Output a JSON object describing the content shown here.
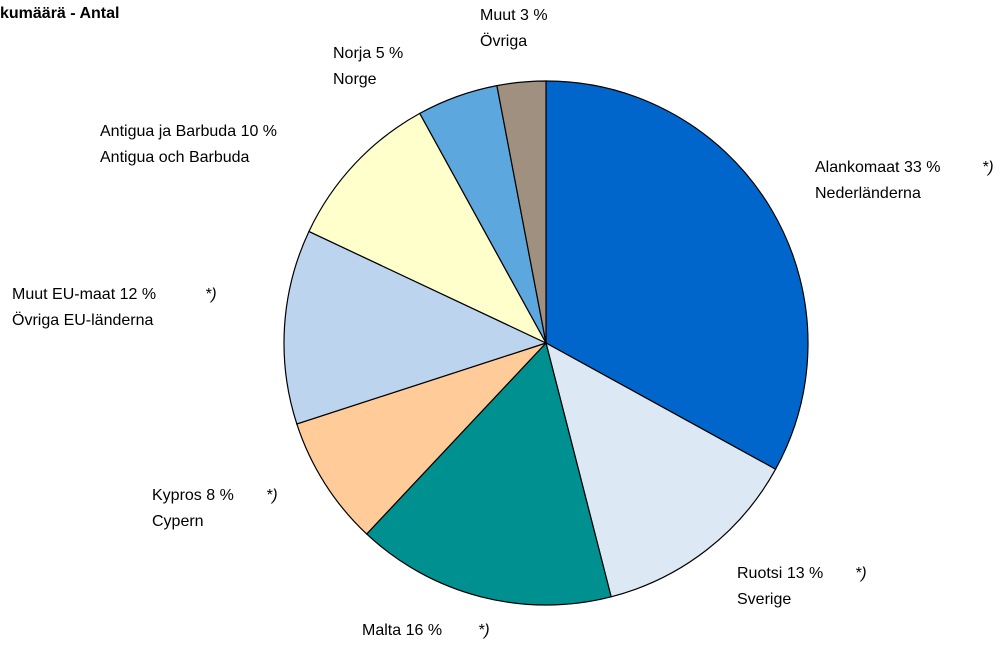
{
  "chart_data": {
    "type": "pie",
    "title": "kumäärä - Antal",
    "categories": [
      "Alankomaat",
      "Ruotsi",
      "Malta",
      "Kypros",
      "Muut EU-maat",
      "Antigua ja Barbuda",
      "Norja",
      "Muut"
    ],
    "values": [
      33,
      13,
      16,
      8,
      12,
      10,
      5,
      3
    ],
    "value_labels": [
      "33 %",
      "13 %",
      "16 %",
      "8 %",
      "12 %",
      "10 %",
      "5 %",
      "3 %"
    ],
    "labels_sv": [
      "Nederländerna",
      "Sverige",
      null,
      "Cypern",
      "Övriga EU-länderna",
      "Antigua och Barbuda",
      "Norge",
      "Övriga"
    ],
    "notes": [
      "*)",
      "*)",
      "*)",
      "*)",
      "*)",
      null,
      null,
      null
    ],
    "colors": [
      "#0066cc",
      "#dde8f5",
      "#009090",
      "#ffcc99",
      "#bcd4ee",
      "#ffffcc",
      "#5ca8de",
      "#a09080"
    ]
  }
}
